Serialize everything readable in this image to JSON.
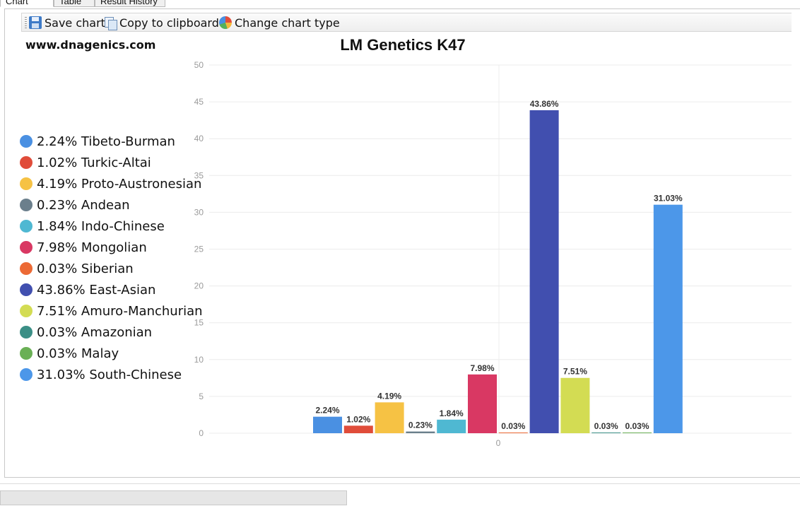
{
  "tabs": [
    {
      "label": "Chart"
    },
    {
      "label": "Table"
    },
    {
      "label": "Result History"
    }
  ],
  "toolbar": {
    "save_label": "Save chart",
    "copy_label": "Copy to clipboard",
    "change_type_label": "Change chart type"
  },
  "site": "www.dnagenics.com",
  "chart_data": {
    "type": "bar",
    "title": "LM Genetics K47",
    "xlabel": "",
    "ylabel": "",
    "ylim": [
      0,
      50
    ],
    "y_ticks": [
      0,
      5,
      10,
      15,
      20,
      25,
      30,
      35,
      40,
      45,
      50
    ],
    "x_ticks": [
      "0"
    ],
    "grid": true,
    "legend_position": "left",
    "series": [
      {
        "name": "Tibeto-Burman",
        "value": 2.24,
        "label": "2.24%",
        "color": "#4a90e2",
        "legend": "2.24% Tibeto-Burman"
      },
      {
        "name": "Turkic-Altai",
        "value": 1.02,
        "label": "1.02%",
        "color": "#e04c3a",
        "legend": "1.02% Turkic-Altai"
      },
      {
        "name": "Proto-Austronesian",
        "value": 4.19,
        "label": "4.19%",
        "color": "#f6c244",
        "legend": "4.19% Proto-Austronesian"
      },
      {
        "name": "Andean",
        "value": 0.23,
        "label": "0.23%",
        "color": "#6b7f8c",
        "legend": "0.23% Andean"
      },
      {
        "name": "Indo-Chinese",
        "value": 1.84,
        "label": "1.84%",
        "color": "#4fb8d2",
        "legend": "1.84% Indo-Chinese"
      },
      {
        "name": "Mongolian",
        "value": 7.98,
        "label": "7.98%",
        "color": "#d93863",
        "legend": "7.98% Mongolian"
      },
      {
        "name": "Siberian",
        "value": 0.03,
        "label": "0.03%",
        "color": "#ec6a35",
        "legend": "0.03% Siberian"
      },
      {
        "name": "East-Asian",
        "value": 43.86,
        "label": "43.86%",
        "color": "#414faf",
        "legend": "43.86% East-Asian"
      },
      {
        "name": "Amuro-Manchurian",
        "value": 7.51,
        "label": "7.51%",
        "color": "#d3dc53",
        "legend": "7.51% Amuro-Manchurian"
      },
      {
        "name": "Amazonian",
        "value": 0.03,
        "label": "0.03%",
        "color": "#3b8f86",
        "legend": "0.03% Amazonian"
      },
      {
        "name": "Malay",
        "value": 0.03,
        "label": "0.03%",
        "color": "#6ab055",
        "legend": "0.03% Malay"
      },
      {
        "name": "South-Chinese",
        "value": 31.03,
        "label": "31.03%",
        "color": "#4c97e9",
        "legend": "31.03% South-Chinese"
      }
    ]
  }
}
